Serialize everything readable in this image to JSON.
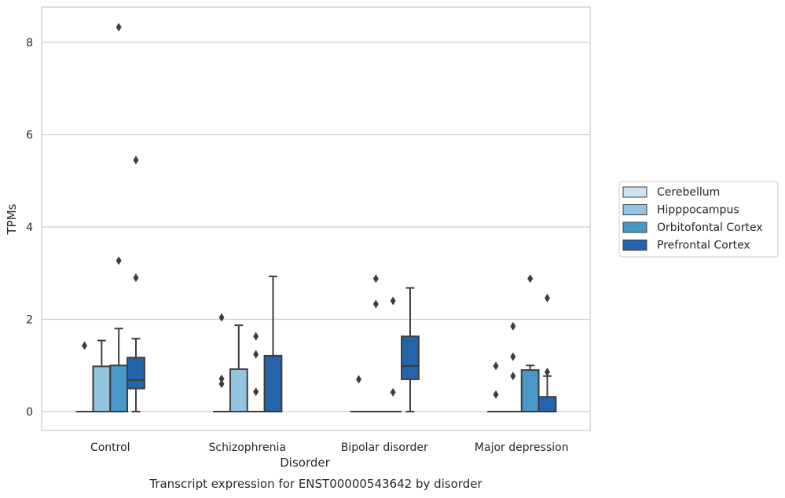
{
  "chart_data": {
    "type": "box",
    "caption": "Transcript expression for ENST00000543642 by disorder",
    "xlabel": "Disorder",
    "ylabel": "TPMs",
    "ylim": [
      -0.4,
      8.75
    ],
    "yticks": [
      0,
      2,
      4,
      6,
      8
    ],
    "grid": true,
    "legend_position": "right",
    "categories": [
      "Control",
      "Schizophrenia",
      "Bipolar disorder",
      "Major depression"
    ],
    "series": [
      {
        "name": "Cerebellum",
        "color": "#d0e1f2",
        "boxes": [
          {
            "q1": 0,
            "median": 0,
            "q3": 0,
            "whisker_low": 0,
            "whisker_high": 0,
            "outliers": [
              1.43
            ]
          },
          {
            "q1": 0,
            "median": 0,
            "q3": 0,
            "whisker_low": 0,
            "whisker_high": 0,
            "outliers": [
              2.04,
              0.71,
              0.6
            ]
          },
          {
            "q1": 0,
            "median": 0,
            "q3": 0,
            "whisker_low": 0,
            "whisker_high": 0,
            "outliers": [
              0.7
            ]
          },
          {
            "q1": 0,
            "median": 0,
            "q3": 0,
            "whisker_low": 0,
            "whisker_high": 0,
            "outliers": [
              0.99,
              0.37
            ]
          }
        ]
      },
      {
        "name": "Hipppocampus",
        "color": "#94c4df",
        "boxes": [
          {
            "q1": 0,
            "median": 0,
            "q3": 0.98,
            "whisker_low": 0,
            "whisker_high": 1.54,
            "outliers": []
          },
          {
            "q1": 0,
            "median": 0,
            "q3": 0.92,
            "whisker_low": 0,
            "whisker_high": 1.87,
            "outliers": []
          },
          {
            "q1": 0,
            "median": 0,
            "q3": 0,
            "whisker_low": 0,
            "whisker_high": 0,
            "outliers": [
              2.88,
              2.33
            ]
          },
          {
            "q1": 0,
            "median": 0,
            "q3": 0,
            "whisker_low": 0,
            "whisker_high": 0,
            "outliers": [
              1.85,
              1.19,
              0.77
            ]
          }
        ]
      },
      {
        "name": "Orbitofontal Cortex",
        "color": "#4a98c9",
        "boxes": [
          {
            "q1": 0,
            "median": 0,
            "q3": 1.0,
            "whisker_low": 0,
            "whisker_high": 1.8,
            "outliers": [
              8.33,
              3.27
            ]
          },
          {
            "q1": 0,
            "median": 0,
            "q3": 0,
            "whisker_low": 0,
            "whisker_high": 0,
            "outliers": [
              1.63,
              1.24,
              0.43
            ]
          },
          {
            "q1": 0,
            "median": 0,
            "q3": 0,
            "whisker_low": 0,
            "whisker_high": 0,
            "outliers": [
              2.4,
              0.42
            ]
          },
          {
            "q1": 0,
            "median": 0,
            "q3": 0.9,
            "whisker_low": 0,
            "whisker_high": 1.0,
            "outliers": [
              2.88
            ]
          }
        ]
      },
      {
        "name": "Prefrontal Cortex",
        "color": "#2364aa",
        "boxes": [
          {
            "q1": 0.5,
            "median": 0.68,
            "q3": 1.17,
            "whisker_low": 0,
            "whisker_high": 1.58,
            "outliers": [
              5.45,
              2.9
            ]
          },
          {
            "q1": 0,
            "median": 0,
            "q3": 1.21,
            "whisker_low": 0,
            "whisker_high": 2.93,
            "outliers": []
          },
          {
            "q1": 0.7,
            "median": 0.99,
            "q3": 1.63,
            "whisker_low": 0,
            "whisker_high": 2.68,
            "outliers": []
          },
          {
            "q1": 0,
            "median": 0,
            "q3": 0.32,
            "whisker_low": 0,
            "whisker_high": 0.77,
            "outliers": [
              2.46,
              0.86
            ]
          }
        ]
      }
    ]
  }
}
